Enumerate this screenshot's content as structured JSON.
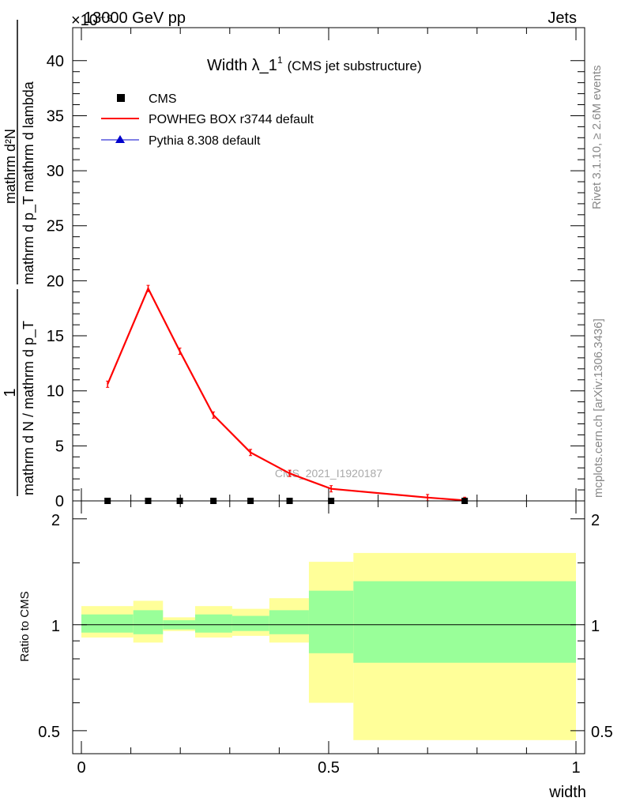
{
  "header": {
    "exponent_label": "×10⁻⁹",
    "beam_label": "13000 GeV pp",
    "category_label": "Jets"
  },
  "side_labels": {
    "rivet": "Rivet 3.1.10, ≥ 2.6M events",
    "mcplots": "mcplots.cern.ch [arXiv:1306.3436]"
  },
  "chart_data": [
    {
      "type": "line",
      "title": "Width λ_1¹ (CMS jet substructure)",
      "title_main": "Width λ_1",
      "title_sup": "1",
      "title_sub": "(CMS jet substructure)",
      "watermark": "CMS_2021_I1920187",
      "ylabel_parts": [
        "1",
        "mathrm d N / mathrm d p",
        "T",
        "mathrm d N",
        "mathrm d p",
        "T",
        "mathrm d lambda"
      ],
      "ylabel_numerator": "1",
      "ylabel_denominator": "mathrm d N / mathrm d p_T",
      "ylabel_right_num": "mathrm d²N",
      "ylabel_right_den": "mathrm d p_T mathrm d lambda",
      "ylim": [
        0,
        43
      ],
      "yticks": [
        0,
        5,
        10,
        15,
        20,
        25,
        30,
        35,
        40
      ],
      "ytick_labels": [
        "0",
        "5",
        "10",
        "15",
        "20",
        "25",
        "30",
        "35",
        "40"
      ],
      "xlim": [
        0,
        1
      ],
      "legend": [
        {
          "name": "CMS",
          "marker": "square",
          "color": "#000000"
        },
        {
          "name": "POWHEG BOX r3744 default",
          "marker": "line",
          "color": "#ff0000"
        },
        {
          "name": "Pythia 8.308 default",
          "marker": "triangle",
          "color": "#0000cc"
        }
      ],
      "legend_placement": "top-left",
      "series": [
        {
          "name": "CMS",
          "x": [
            0.053,
            0.135,
            0.199,
            0.267,
            0.342,
            0.421,
            0.505,
            0.775
          ],
          "y": [
            0,
            0,
            0,
            0,
            0,
            0,
            0,
            0
          ]
        },
        {
          "name": "POWHEG BOX r3744 default",
          "x": [
            0.053,
            0.135,
            0.199,
            0.267,
            0.342,
            0.421,
            0.505,
            0.7,
            0.775
          ],
          "y": [
            10.6,
            19.3,
            13.6,
            7.8,
            4.4,
            2.5,
            1.1,
            0.3,
            0.05
          ]
        },
        {
          "name": "Pythia 8.308 default",
          "x": [],
          "y": []
        }
      ]
    },
    {
      "type": "area",
      "ylabel": "Ratio to CMS",
      "xlabel": "width",
      "xlim": [
        0,
        1
      ],
      "ylim": [
        0.43,
        2.25
      ],
      "xticks": [
        0,
        0.5,
        1
      ],
      "xtick_labels": [
        "0",
        "0.5",
        "1"
      ],
      "yticks": [
        0.5,
        1,
        2
      ],
      "ytick_labels": [
        "0.5",
        "1",
        "2"
      ],
      "bins": [
        {
          "lo": 0.0,
          "hi": 0.105,
          "stat_lo": 0.95,
          "stat_hi": 1.07,
          "tot_lo": 0.92,
          "tot_hi": 1.13
        },
        {
          "lo": 0.105,
          "hi": 0.165,
          "stat_lo": 0.94,
          "stat_hi": 1.1,
          "tot_lo": 0.89,
          "tot_hi": 1.17
        },
        {
          "lo": 0.165,
          "hi": 0.23,
          "stat_lo": 0.97,
          "stat_hi": 1.03,
          "tot_lo": 0.96,
          "tot_hi": 1.05
        },
        {
          "lo": 0.23,
          "hi": 0.305,
          "stat_lo": 0.95,
          "stat_hi": 1.07,
          "tot_lo": 0.92,
          "tot_hi": 1.13
        },
        {
          "lo": 0.305,
          "hi": 0.38,
          "stat_lo": 0.96,
          "stat_hi": 1.06,
          "tot_lo": 0.93,
          "tot_hi": 1.11
        },
        {
          "lo": 0.38,
          "hi": 0.46,
          "stat_lo": 0.94,
          "stat_hi": 1.1,
          "tot_lo": 0.89,
          "tot_hi": 1.19
        },
        {
          "lo": 0.46,
          "hi": 0.55,
          "stat_lo": 0.83,
          "stat_hi": 1.25,
          "tot_lo": 0.6,
          "tot_hi": 1.51
        },
        {
          "lo": 0.55,
          "hi": 1.0,
          "stat_lo": 0.78,
          "stat_hi": 1.33,
          "tot_lo": 0.47,
          "tot_hi": 1.6
        }
      ],
      "reference_line": 1,
      "colors": {
        "stat": "#99ff99",
        "total": "#ffff99"
      }
    }
  ]
}
